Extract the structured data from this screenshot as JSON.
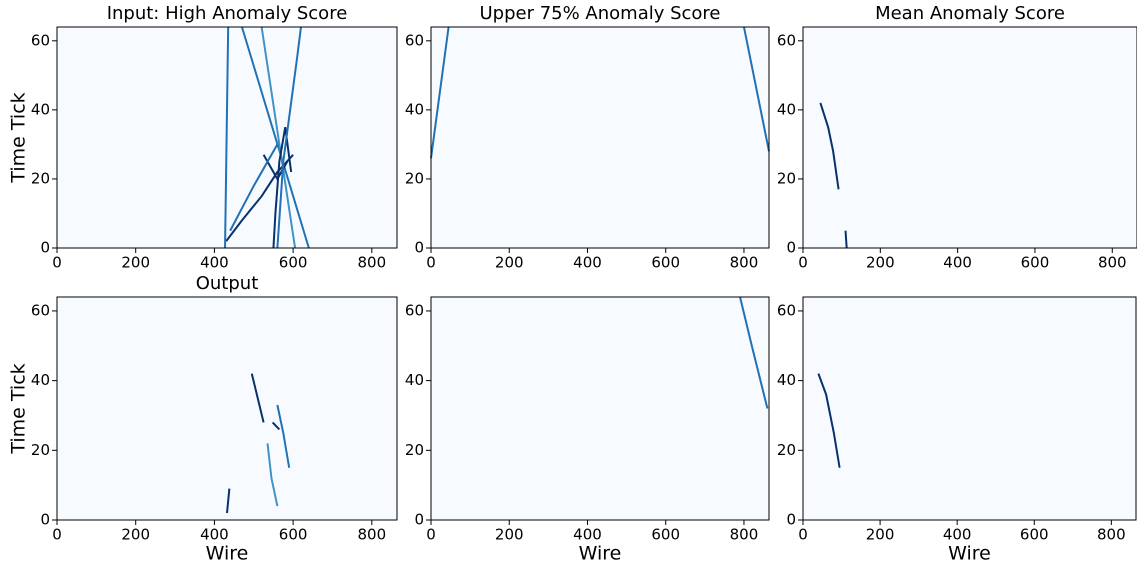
{
  "chart_data": [
    {
      "type": "heatmap",
      "title": "Input: High Anomaly Score",
      "ylabel": "Time Tick",
      "xlim": [
        0,
        864
      ],
      "ylim": [
        0,
        64
      ],
      "xticks": [
        0,
        200,
        400,
        600,
        800
      ],
      "yticks": [
        0,
        20,
        40,
        60
      ],
      "background": "#f7fbff",
      "series": [
        {
          "color": "#08306b",
          "x": [
            430,
            470,
            520,
            560,
            600
          ],
          "y": [
            2,
            8,
            15,
            22,
            27
          ]
        },
        {
          "color": "#2171b5",
          "x": [
            427,
            435
          ],
          "y": [
            0,
            64
          ]
        },
        {
          "color": "#2171b5",
          "x": [
            470,
            640
          ],
          "y": [
            64,
            0
          ]
        },
        {
          "color": "#4292c6",
          "x": [
            520,
            605
          ],
          "y": [
            64,
            0
          ]
        },
        {
          "color": "#08306b",
          "x": [
            550,
            555,
            565,
            580,
            595
          ],
          "y": [
            0,
            10,
            25,
            35,
            22
          ]
        },
        {
          "color": "#08306b",
          "x": [
            525,
            560,
            585
          ],
          "y": [
            27,
            20,
            25
          ]
        },
        {
          "color": "#2171b5",
          "x": [
            560,
            575,
            610,
            620
          ],
          "y": [
            0,
            25,
            55,
            64
          ]
        },
        {
          "color": "#2171b5",
          "x": [
            440,
            500,
            560
          ],
          "y": [
            5,
            18,
            30
          ]
        }
      ]
    },
    {
      "type": "heatmap",
      "title": "Upper 75% Anomaly Score",
      "xlim": [
        0,
        864
      ],
      "ylim": [
        0,
        64
      ],
      "xticks": [
        0,
        200,
        400,
        600,
        800
      ],
      "yticks": [
        0,
        20,
        40,
        60
      ],
      "background": "#f7fbff",
      "series": [
        {
          "color": "#2171b5",
          "x": [
            0,
            45
          ],
          "y": [
            26,
            64
          ]
        },
        {
          "color": "#2171b5",
          "x": [
            800,
            864
          ],
          "y": [
            64,
            28
          ]
        }
      ]
    },
    {
      "type": "heatmap",
      "title": "Mean Anomaly Score",
      "xlim": [
        0,
        864
      ],
      "ylim": [
        0,
        64
      ],
      "xticks": [
        0,
        200,
        400,
        600,
        800
      ],
      "yticks": [
        0,
        20,
        40,
        60
      ],
      "background": "#f7fbff",
      "series": [
        {
          "color": "#08306b",
          "x": [
            45,
            65,
            78,
            92
          ],
          "y": [
            42,
            35,
            28,
            17
          ]
        },
        {
          "color": "#08306b",
          "x": [
            110,
            113
          ],
          "y": [
            5,
            0
          ]
        }
      ]
    },
    {
      "type": "heatmap",
      "title": "Output",
      "ylabel": "Time Tick",
      "xlabel": "Wire",
      "xlim": [
        0,
        864
      ],
      "ylim": [
        0,
        64
      ],
      "xticks": [
        0,
        200,
        400,
        600,
        800
      ],
      "yticks": [
        0,
        20,
        40,
        60
      ],
      "background": "#f7fbff",
      "series": [
        {
          "color": "#08306b",
          "x": [
            432,
            438
          ],
          "y": [
            2,
            9
          ]
        },
        {
          "color": "#08306b",
          "x": [
            495,
            510,
            525
          ],
          "y": [
            42,
            35,
            28
          ]
        },
        {
          "color": "#2171b5",
          "x": [
            560,
            575,
            590
          ],
          "y": [
            33,
            25,
            15
          ]
        },
        {
          "color": "#4292c6",
          "x": [
            535,
            545,
            560
          ],
          "y": [
            22,
            12,
            4
          ]
        },
        {
          "color": "#08306b",
          "x": [
            548,
            565
          ],
          "y": [
            28,
            26
          ]
        }
      ]
    },
    {
      "type": "heatmap",
      "xlabel": "Wire",
      "xlim": [
        0,
        864
      ],
      "ylim": [
        0,
        64
      ],
      "xticks": [
        0,
        200,
        400,
        600,
        800
      ],
      "yticks": [
        0,
        20,
        40,
        60
      ],
      "background": "#f7fbff",
      "series": [
        {
          "color": "#2171b5",
          "x": [
            790,
            820,
            860
          ],
          "y": [
            64,
            50,
            32
          ]
        }
      ]
    },
    {
      "type": "heatmap",
      "xlabel": "Wire",
      "xlim": [
        0,
        864
      ],
      "ylim": [
        0,
        64
      ],
      "xticks": [
        0,
        200,
        400,
        600,
        800
      ],
      "yticks": [
        0,
        20,
        40,
        60
      ],
      "background": "#f7fbff",
      "series": [
        {
          "color": "#08306b",
          "x": [
            40,
            60,
            80,
            95
          ],
          "y": [
            42,
            36,
            25,
            15
          ]
        }
      ]
    }
  ]
}
